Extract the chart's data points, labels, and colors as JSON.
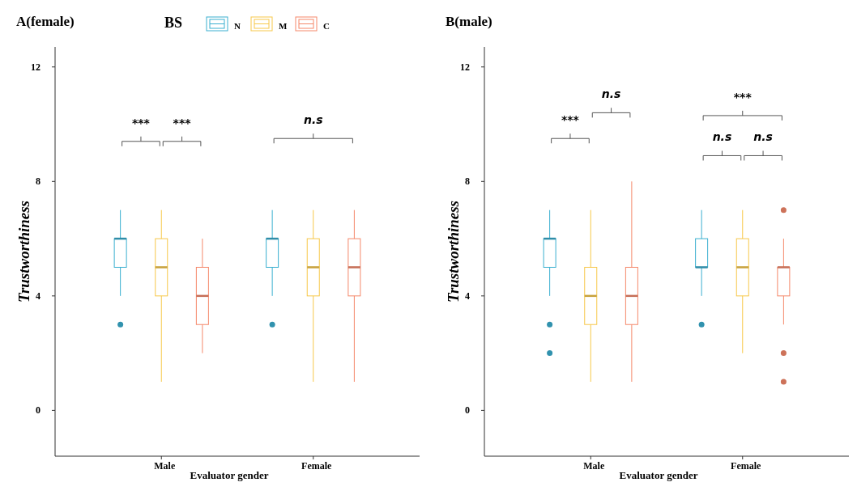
{
  "chart_data": [
    {
      "type": "box",
      "title": "A(female)",
      "xlabel": "Evaluator gender",
      "ylabel": "Trustworthiness",
      "legend_title": "BS",
      "legend": "top",
      "grid": false,
      "categories": [
        "Male",
        "Female"
      ],
      "ylim": [
        -1.6,
        12.7
      ],
      "yticks": [
        0,
        4,
        8,
        12
      ],
      "annotations": [
        "***",
        "***",
        "n.s"
      ],
      "series": [
        {
          "name": "N",
          "color": "#3aafd0",
          "boxes": [
            {
              "low": 4,
              "q1": 5,
              "median": 6,
              "q3": 6,
              "high": 7,
              "outliers": [
                3
              ]
            },
            {
              "low": 4,
              "q1": 5,
              "median": 6,
              "q3": 6,
              "high": 7,
              "outliers": [
                3
              ]
            }
          ]
        },
        {
          "name": "M",
          "color": "#f7c84a",
          "boxes": [
            {
              "low": 1,
              "q1": 4,
              "median": 5,
              "q3": 6,
              "high": 7
            },
            {
              "low": 1,
              "q1": 4,
              "median": 5,
              "q3": 6,
              "high": 7
            }
          ]
        },
        {
          "name": "C",
          "color": "#f5886a",
          "boxes": [
            {
              "low": 2,
              "q1": 3,
              "median": 4,
              "q3": 5,
              "high": 6
            },
            {
              "low": 1,
              "q1": 4,
              "median": 5,
              "q3": 6,
              "high": 7
            }
          ]
        }
      ]
    },
    {
      "type": "box",
      "title": "B(male)",
      "xlabel": "Evaluator gender",
      "ylabel": "Trustworthiness",
      "grid": false,
      "categories": [
        "Male",
        "Female"
      ],
      "ylim": [
        -1.6,
        12.7
      ],
      "yticks": [
        0,
        4,
        8,
        12
      ],
      "annotations": [
        "***",
        "n.s",
        "***",
        "n.s",
        "n.s"
      ],
      "series": [
        {
          "color": "#3aafd0",
          "boxes": [
            {
              "low": 4,
              "q1": 5,
              "median": 6,
              "q3": 6,
              "high": 7,
              "outliers": [
                3,
                2
              ]
            },
            {
              "low": 4,
              "q1": 5,
              "median": 5,
              "q3": 6,
              "high": 7,
              "outliers": [
                3
              ]
            }
          ]
        },
        {
          "color": "#f7c84a",
          "boxes": [
            {
              "low": 1,
              "q1": 3,
              "median": 4,
              "q3": 5,
              "high": 7
            },
            {
              "low": 2,
              "q1": 4,
              "median": 5,
              "q3": 6,
              "high": 7
            }
          ]
        },
        {
          "color": "#f5886a",
          "boxes": [
            {
              "low": 1,
              "q1": 3,
              "median": 4,
              "q3": 5,
              "high": 8
            },
            {
              "low": 3,
              "q1": 4,
              "median": 5,
              "q3": 5,
              "high": 6,
              "outliers": [
                7,
                2,
                1
              ]
            }
          ]
        }
      ]
    }
  ]
}
